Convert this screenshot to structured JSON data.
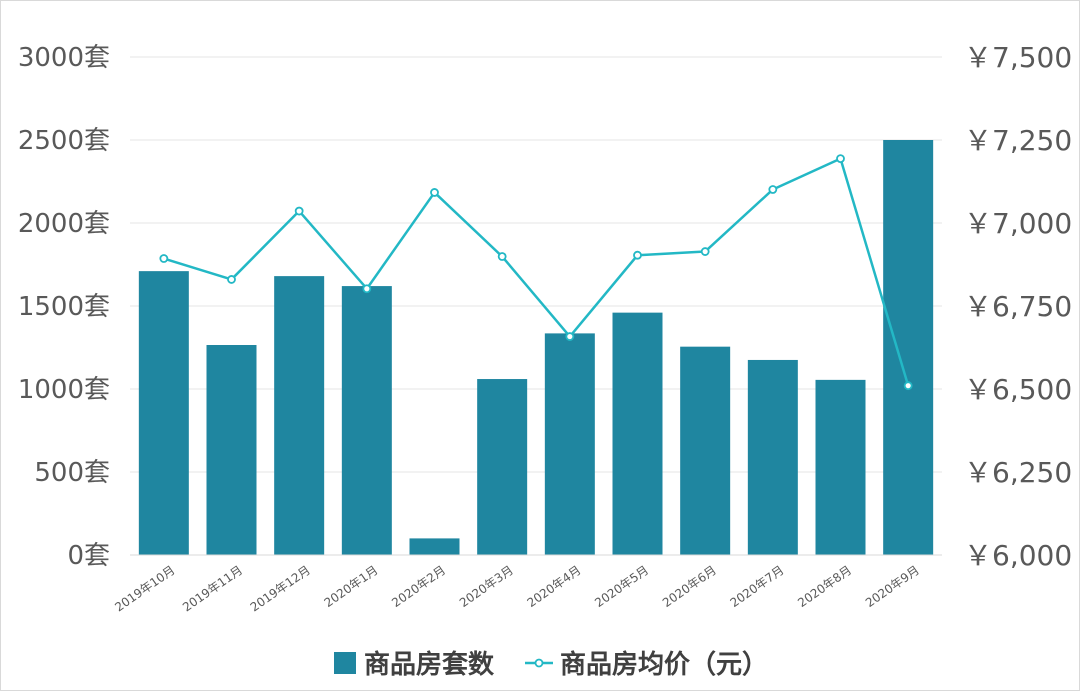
{
  "chart_data": {
    "type": "bar",
    "categories": [
      "2019年10月",
      "2019年11月",
      "2019年12月",
      "2020年1月",
      "2020年2月",
      "2020年3月",
      "2020年4月",
      "2020年5月",
      "2020年6月",
      "2020年7月",
      "2020年8月",
      "2020年9月"
    ],
    "series": [
      {
        "name": "商品房套数",
        "type": "bar",
        "axis": "left",
        "values": [
          1710,
          1265,
          1680,
          1620,
          100,
          1060,
          1335,
          1460,
          1255,
          1175,
          1055,
          2500
        ]
      },
      {
        "name": "商品房均价（元）",
        "type": "line",
        "axis": "right",
        "values": [
          6893,
          6830,
          7036,
          6802,
          7092,
          6899,
          6658,
          6903,
          6914,
          7101,
          7194,
          6510
        ]
      }
    ],
    "y_left": {
      "ylim": [
        0,
        3000
      ],
      "ticks": [
        0,
        500,
        1000,
        1500,
        2000,
        2500,
        3000
      ],
      "tick_labels": [
        "0套",
        "500套",
        "1000套",
        "1500套",
        "2000套",
        "2500套",
        "3000套"
      ]
    },
    "y_right": {
      "ylim": [
        6000,
        7500
      ],
      "ticks": [
        6000,
        6250,
        6500,
        6750,
        7000,
        7250,
        7500
      ],
      "tick_labels": [
        "￥6,000",
        "￥6,250",
        "￥6,500",
        "￥6,750",
        "￥7,000",
        "￥7,250",
        "￥7,500"
      ]
    },
    "grid": true,
    "legend": "bottom",
    "colors": {
      "bar": "#1f86a0",
      "line": "#23b8c5",
      "grid": "#e6e6e6",
      "text": "#595959"
    }
  }
}
